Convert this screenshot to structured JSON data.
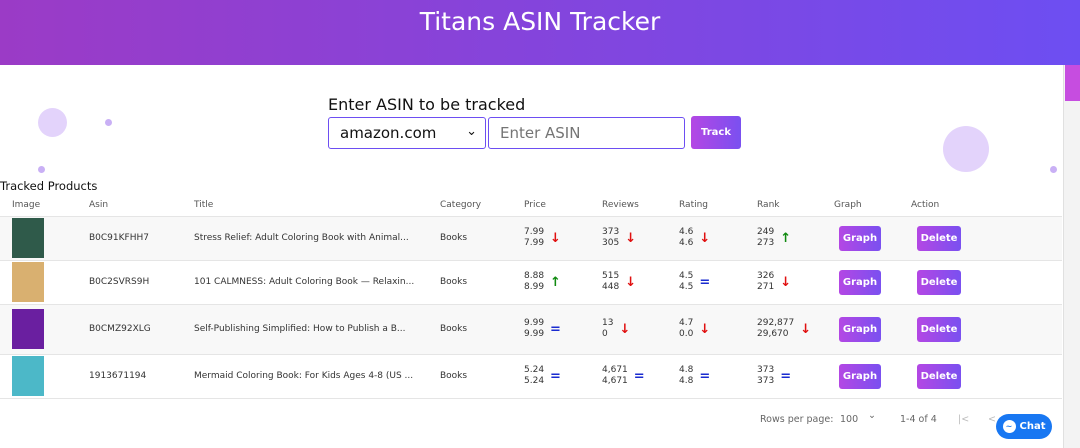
{
  "header": {
    "title": "Titans ASIN Tracker"
  },
  "form": {
    "label": "Enter ASIN to be tracked",
    "marketplace": "amazon.com",
    "asin_placeholder": "Enter ASIN",
    "track_label": "Track"
  },
  "table": {
    "title": "Tracked Products",
    "columns": [
      "Image",
      "Asin",
      "Title",
      "Category",
      "Price",
      "Reviews",
      "Rating",
      "Rank",
      "Graph",
      "Action"
    ],
    "rows": [
      {
        "asin": "B0C91KFHH7",
        "title": "Stress Relief: Adult Coloring Book with Animal...",
        "category": "Books",
        "price": [
          "7.99",
          "7.99"
        ],
        "price_trend": "down",
        "reviews": [
          "373",
          "305"
        ],
        "reviews_trend": "down",
        "rating": [
          "4.6",
          "4.6"
        ],
        "rating_trend": "down",
        "rank": [
          "249",
          "273"
        ],
        "rank_trend": "up",
        "cover": "#2f5a4a"
      },
      {
        "asin": "B0C2SVRS9H",
        "title": "101 CALMNESS: Adult Coloring Book — Relaxin...",
        "category": "Books",
        "price": [
          "8.88",
          "8.99"
        ],
        "price_trend": "up",
        "reviews": [
          "515",
          "448"
        ],
        "reviews_trend": "down",
        "rating": [
          "4.5",
          "4.5"
        ],
        "rating_trend": "equal",
        "rank": [
          "326",
          "271"
        ],
        "rank_trend": "down",
        "cover": "#d9b070"
      },
      {
        "asin": "B0CMZ92XLG",
        "title": "Self-Publishing Simplified: How to Publish a B...",
        "category": "Books",
        "price": [
          "9.99",
          "9.99"
        ],
        "price_trend": "equal",
        "reviews": [
          "13",
          "0"
        ],
        "reviews_trend": "down",
        "rating": [
          "4.7",
          "0.0"
        ],
        "rating_trend": "down",
        "rank": [
          "292,877",
          "29,670"
        ],
        "rank_trend": "down",
        "cover": "#6a1fa0"
      },
      {
        "asin": "1913671194",
        "title": "Mermaid Coloring Book: For Kids Ages 4-8 (US ...",
        "category": "Books",
        "price": [
          "5.24",
          "5.24"
        ],
        "price_trend": "equal",
        "reviews": [
          "4,671",
          "4,671"
        ],
        "reviews_trend": "equal",
        "rating": [
          "4.8",
          "4.8"
        ],
        "rating_trend": "equal",
        "rank": [
          "373",
          "373"
        ],
        "rank_trend": "equal",
        "cover": "#4cb8c8"
      }
    ],
    "graph_label": "Graph",
    "delete_label": "Delete"
  },
  "pagination": {
    "rows_per_page_label": "Rows per page:",
    "rows_per_page": "100",
    "range": "1-4 of 4"
  },
  "chat": {
    "label": "Chat"
  },
  "colors": {
    "down": "#e01010",
    "up": "#108a10",
    "equal": "#1a2bd0",
    "accent": "#7a50f0"
  }
}
